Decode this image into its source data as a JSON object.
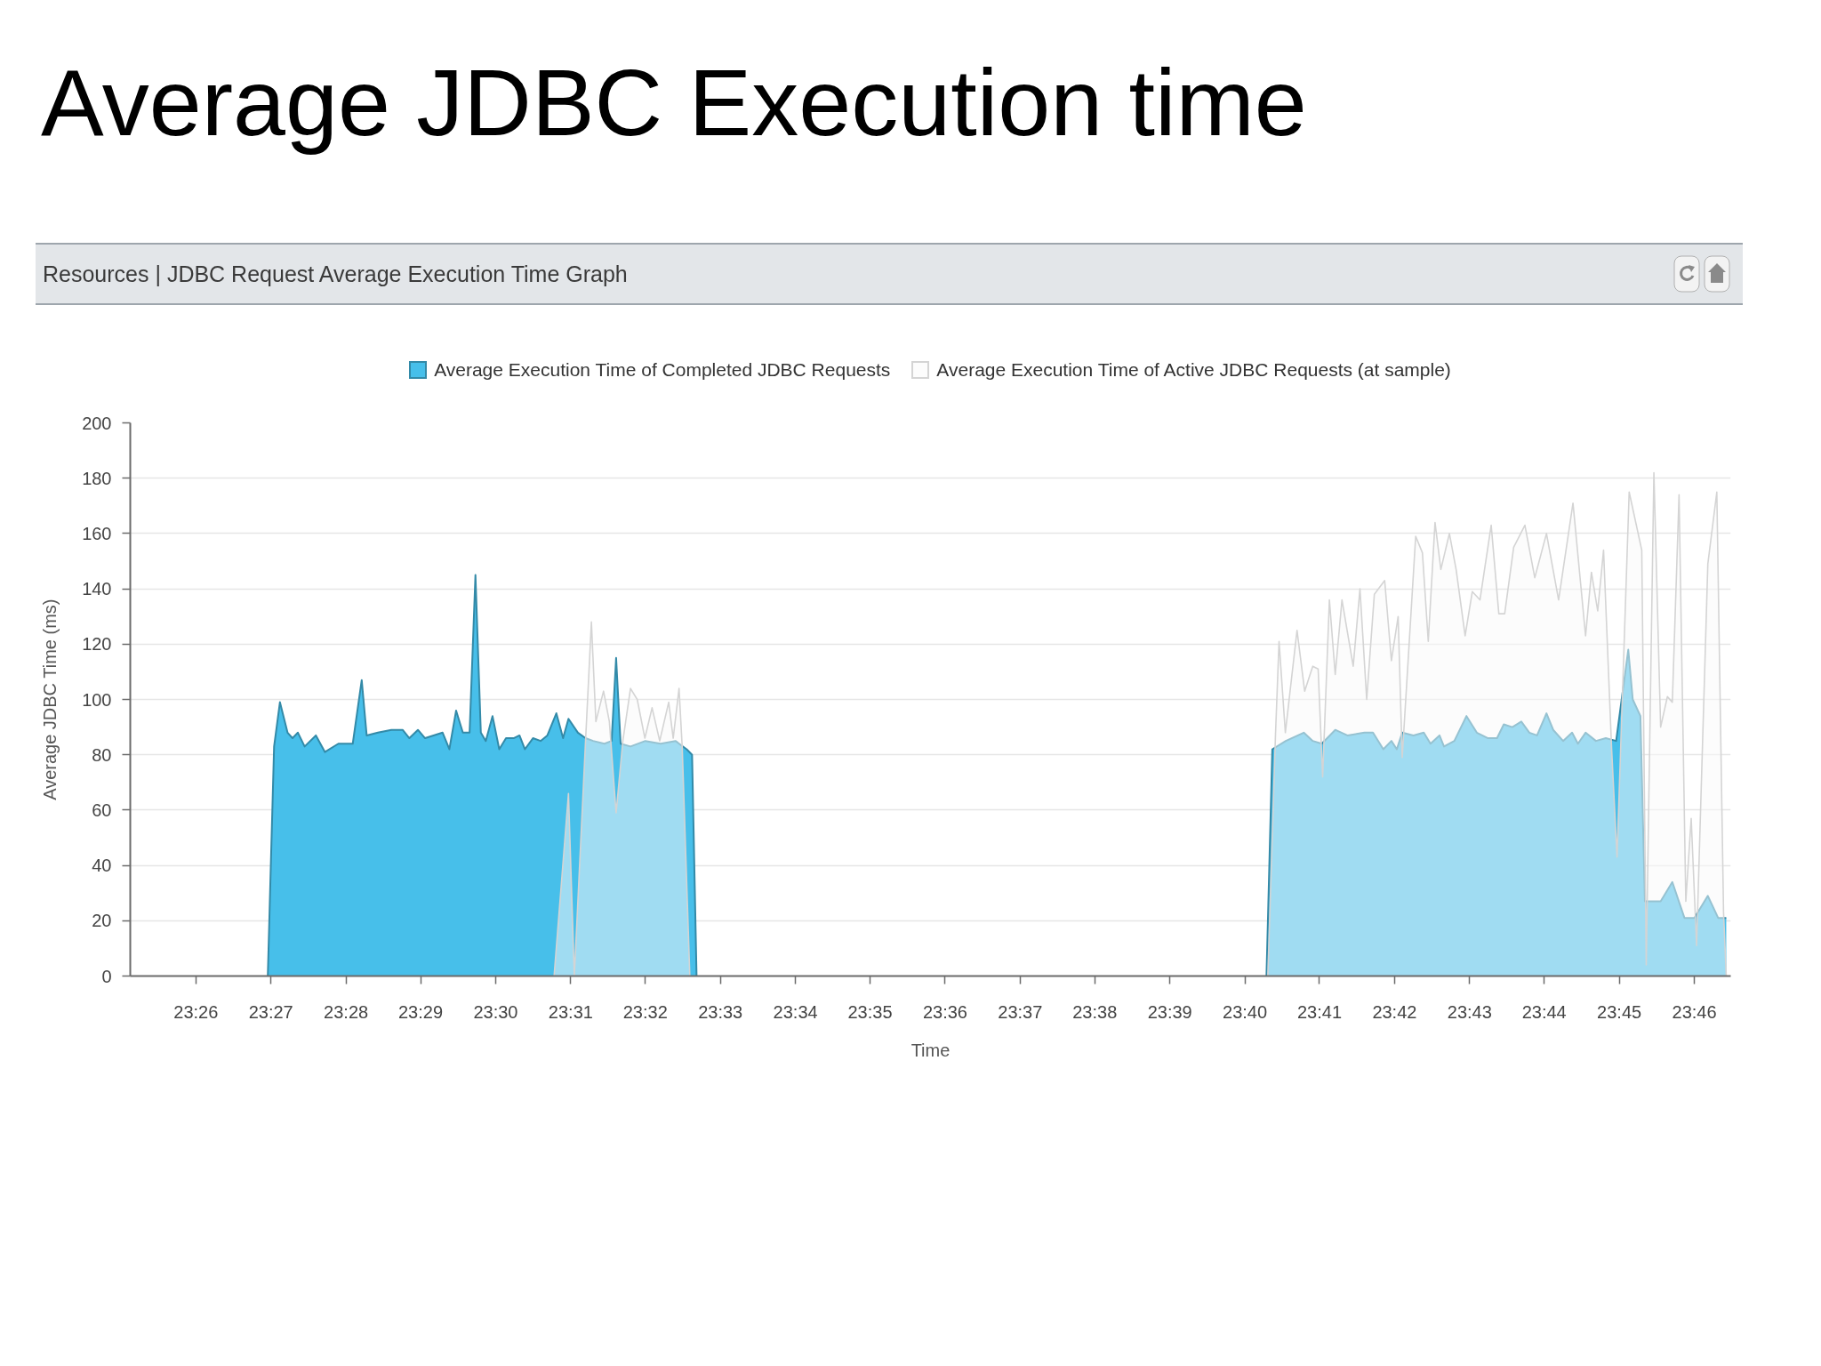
{
  "chart_data": {
    "type": "area",
    "title": "Average JDBC Execution time",
    "subtitle": "Resources | JDBC Request Average Execution Time Graph",
    "xlabel": "Time",
    "ylabel": "Average JDBC Time (ms)",
    "xlim": [
      23.4187,
      23.7748
    ],
    "xticks": [
      {
        "value": 23.4333,
        "label": "23:26"
      },
      {
        "value": 23.45,
        "label": "23:27"
      },
      {
        "value": 23.4667,
        "label": "23:28"
      },
      {
        "value": 23.4833,
        "label": "23:29"
      },
      {
        "value": 23.5,
        "label": "23:30"
      },
      {
        "value": 23.5167,
        "label": "23:31"
      },
      {
        "value": 23.5333,
        "label": "23:32"
      },
      {
        "value": 23.55,
        "label": "23:33"
      },
      {
        "value": 23.5667,
        "label": "23:34"
      },
      {
        "value": 23.5833,
        "label": "23:35"
      },
      {
        "value": 23.6,
        "label": "23:36"
      },
      {
        "value": 23.6167,
        "label": "23:37"
      },
      {
        "value": 23.6333,
        "label": "23:38"
      },
      {
        "value": 23.65,
        "label": "23:39"
      },
      {
        "value": 23.6667,
        "label": "23:40"
      },
      {
        "value": 23.6833,
        "label": "23:41"
      },
      {
        "value": 23.7,
        "label": "23:42"
      },
      {
        "value": 23.7167,
        "label": "23:43"
      },
      {
        "value": 23.7333,
        "label": "23:44"
      },
      {
        "value": 23.75,
        "label": "23:45"
      },
      {
        "value": 23.7667,
        "label": "23:46"
      }
    ],
    "ylim": [
      0,
      200
    ],
    "yticks": [
      0,
      20,
      40,
      60,
      80,
      100,
      120,
      140,
      160,
      180,
      200
    ],
    "grid": "y",
    "legend": "top",
    "series": [
      {
        "name": "Average Execution Time of Completed JDBC Requests",
        "color": "#47bfea",
        "x": [
          23.4493,
          23.4507,
          23.452,
          23.4537,
          23.4548,
          23.456,
          23.4575,
          23.46,
          23.462,
          23.465,
          23.4682,
          23.4702,
          23.4713,
          23.4738,
          23.4768,
          23.4793,
          23.4808,
          23.4827,
          23.4843,
          23.4882,
          23.4897,
          23.4912,
          23.4927,
          23.4942,
          23.4955,
          23.4967,
          23.4978,
          23.4993,
          23.5008,
          23.5023,
          23.504,
          23.5053,
          23.5065,
          23.5083,
          23.51,
          23.5115,
          23.5135,
          23.515,
          23.5162,
          23.5183,
          23.52,
          23.5217,
          23.5242,
          23.5258,
          23.5268,
          23.5278,
          23.53,
          23.5333,
          23.5367,
          23.54,
          23.5425,
          23.5437,
          23.5447,
          23.6083,
          23.6715,
          23.6728,
          23.6758,
          23.6798,
          23.6818,
          23.6838,
          23.6868,
          23.6895,
          23.6933,
          23.6952,
          23.6975,
          23.6993,
          23.7005,
          23.7017,
          23.7042,
          23.7065,
          23.708,
          23.71,
          23.711,
          23.7133,
          23.716,
          23.7183,
          23.7208,
          23.7228,
          23.7243,
          23.7262,
          23.7282,
          23.73,
          23.7317,
          23.7338,
          23.7353,
          23.7375,
          23.7395,
          23.7408,
          23.7425,
          23.7448,
          23.747,
          23.7493,
          23.752,
          23.753,
          23.7547,
          23.7557,
          23.7565,
          23.7592,
          23.7618,
          23.7645,
          23.7667,
          23.7697,
          23.772,
          23.7738
        ],
        "values": [
          0,
          83,
          99,
          88,
          86,
          88,
          83,
          87,
          81,
          84,
          84,
          107,
          87,
          88,
          89,
          89,
          86,
          89,
          86,
          88,
          82,
          96,
          88,
          88,
          145,
          88,
          85,
          94,
          82,
          86,
          86,
          87,
          82,
          86,
          85,
          87,
          95,
          86,
          93,
          88,
          86,
          85,
          84,
          85,
          115,
          84,
          83,
          85,
          84,
          85,
          82,
          80,
          0,
          null,
          0,
          82,
          85,
          88,
          85,
          84,
          89,
          87,
          88,
          88,
          82,
          85,
          82,
          88,
          87,
          88,
          84,
          87,
          83,
          85,
          94,
          88,
          86,
          86,
          91,
          90,
          92,
          88,
          87,
          95,
          89,
          85,
          88,
          84,
          88,
          85,
          86,
          85,
          118,
          100,
          94,
          27,
          27,
          27,
          34,
          21,
          21,
          29,
          21,
          21
        ]
      },
      {
        "name": "Average Execution Time of Active JDBC Requests (at sample)",
        "color": "#d4d4d4",
        "x": [
          23.513,
          23.5162,
          23.5175,
          23.52,
          23.5213,
          23.5223,
          23.524,
          23.5253,
          23.5268,
          23.5283,
          23.53,
          23.5315,
          23.5332,
          23.5348,
          23.5365,
          23.5385,
          23.5395,
          23.5408,
          23.5415,
          23.5432,
          23.6083,
          23.6718,
          23.6735,
          23.6743,
          23.6757,
          23.6783,
          23.68,
          23.6818,
          23.683,
          23.684,
          23.6855,
          23.6868,
          23.6883,
          23.6908,
          23.6923,
          23.6938,
          23.6955,
          23.6978,
          23.6993,
          23.7008,
          23.7017,
          23.7047,
          23.7062,
          23.7075,
          23.709,
          23.7103,
          23.7122,
          23.7137,
          23.7157,
          23.7173,
          23.719,
          23.7215,
          23.7232,
          23.7245,
          23.7265,
          23.729,
          23.7312,
          23.7338,
          23.7365,
          23.7397,
          23.7425,
          23.7438,
          23.7452,
          23.7465,
          23.7483,
          23.7495,
          23.7522,
          23.755,
          23.756,
          23.7577,
          23.7592,
          23.7607,
          23.7618,
          23.7633,
          23.7648,
          23.766,
          23.7672,
          23.7697,
          23.7717,
          23.7732,
          23.7738
        ],
        "values": [
          0,
          66,
          0,
          85,
          128,
          92,
          103,
          92,
          59,
          85,
          104,
          100,
          86,
          97,
          85,
          99,
          86,
          104,
          83,
          0,
          null,
          0,
          87,
          121,
          88,
          125,
          103,
          112,
          111,
          72,
          136,
          109,
          136,
          112,
          140,
          100,
          138,
          143,
          114,
          130,
          79,
          159,
          153,
          121,
          164,
          147,
          160,
          147,
          123,
          139,
          136,
          163,
          131,
          131,
          155,
          163,
          144,
          160,
          136,
          171,
          123,
          146,
          132,
          154,
          82,
          43,
          175,
          154,
          4,
          182,
          90,
          101,
          99,
          174,
          27,
          57,
          11,
          149,
          175,
          23,
          0
        ]
      }
    ]
  }
}
